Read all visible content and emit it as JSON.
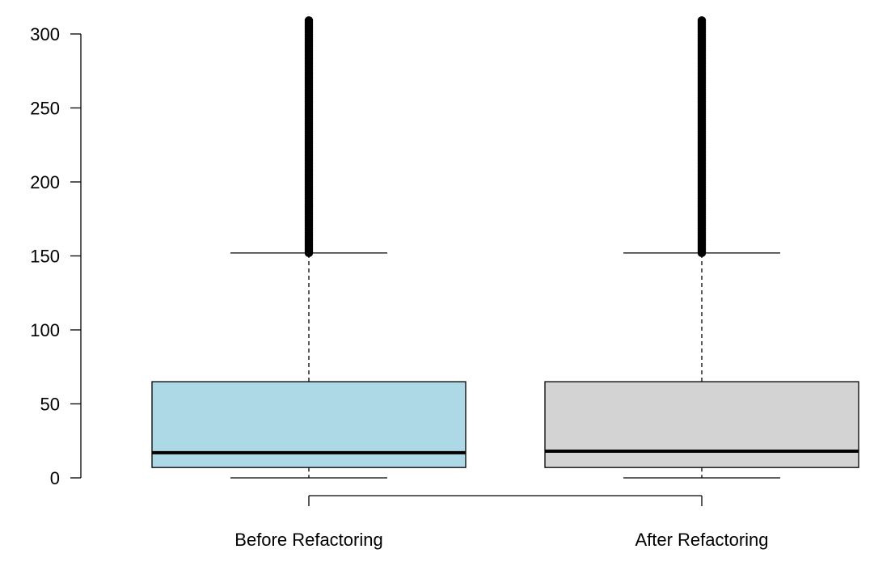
{
  "chart_data": {
    "type": "boxplot",
    "ylim": [
      0,
      310
    ],
    "yticks": [
      0,
      50,
      100,
      150,
      200,
      250,
      300
    ],
    "grid": false,
    "legend": "none",
    "categories": [
      "Before Refactoring",
      "After Refactoring"
    ],
    "boxes": [
      {
        "label": "Before Refactoring",
        "color": "#add8e6",
        "whisker_low": 0,
        "q1": 7,
        "median": 17,
        "q3": 65,
        "whisker_high": 152,
        "outliers_from": 152,
        "outliers_to": 310
      },
      {
        "label": "After Refactoring",
        "color": "#d3d3d3",
        "whisker_low": 0,
        "q1": 7,
        "median": 18,
        "q3": 65,
        "whisker_high": 152,
        "outliers_from": 152,
        "outliers_to": 310
      }
    ]
  }
}
